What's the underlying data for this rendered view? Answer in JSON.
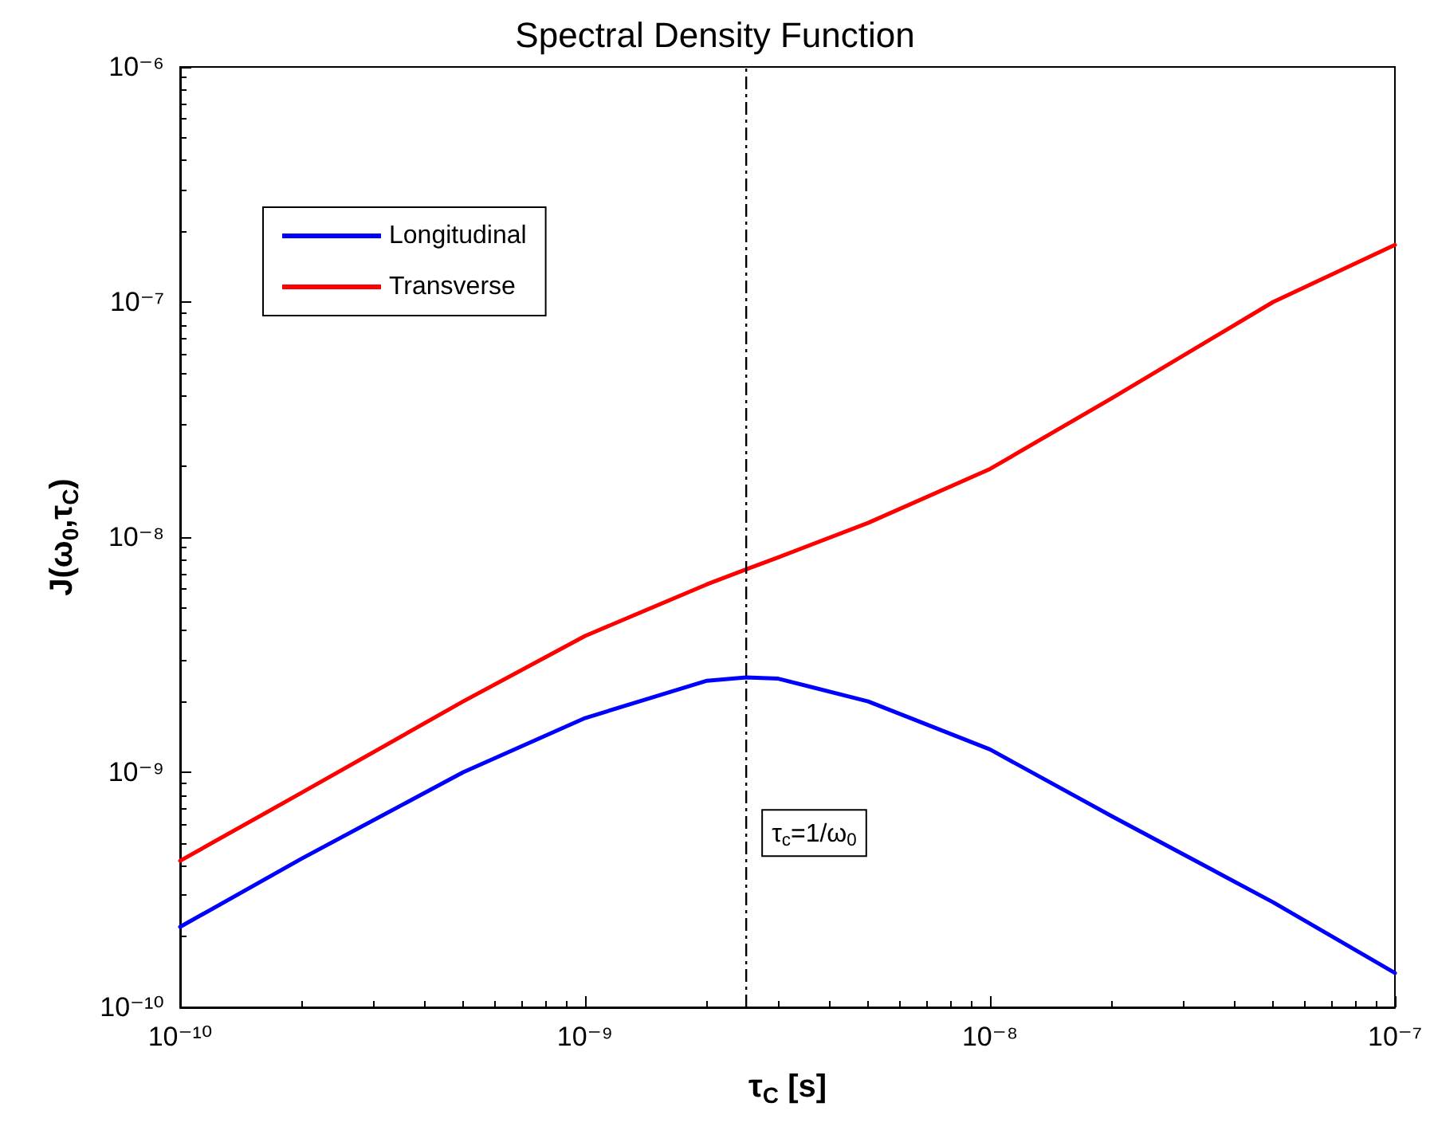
{
  "chart_data": {
    "type": "line",
    "title": "Spectral Density Function",
    "xlabel": "τ$_{C}$ [s]",
    "ylabel": "J(ω$_{0}$,τ$_{C}$)",
    "log": "xy",
    "grid": false,
    "legend": "top left",
    "marker": "none",
    "line_style": "solid",
    "x": [
      1e-10,
      2e-10,
      5e-10,
      1e-09,
      2e-09,
      2.5e-09,
      3e-09,
      5e-09,
      1e-08,
      2e-08,
      5e-08,
      1e-07
    ],
    "xlim": [
      1e-10,
      1e-07
    ],
    "xticks": [
      {
        "value": 1e-10,
        "label": "10⁻¹⁰"
      },
      {
        "value": 1e-09,
        "label": "10⁻⁹"
      },
      {
        "value": 1e-08,
        "label": "10⁻⁸"
      },
      {
        "value": 1e-07,
        "label": "10⁻⁷"
      }
    ],
    "ylim": [
      1e-10,
      1e-06
    ],
    "yticks": [
      {
        "value": 1e-10,
        "label": "10⁻¹⁰"
      },
      {
        "value": 1e-09,
        "label": "10⁻⁹"
      },
      {
        "value": 1e-08,
        "label": "10⁻⁸"
      },
      {
        "value": 1e-07,
        "label": "10⁻⁷"
      },
      {
        "value": 1e-06,
        "label": "10⁻⁶"
      }
    ],
    "series": [
      {
        "name": "Longitudinal",
        "color": "#0000ff",
        "values": [
          2.2e-10,
          4.3e-10,
          1e-09,
          1.7e-09,
          2.45e-09,
          2.53e-09,
          2.5e-09,
          2e-09,
          1.25e-09,
          6.5e-10,
          2.8e-10,
          1.4e-10
        ]
      },
      {
        "name": "Transverse",
        "color": "#ff0000",
        "values": [
          4.2e-10,
          8.2e-10,
          2e-09,
          3.8e-09,
          6.3e-09,
          7.3e-09,
          8.2e-09,
          1.15e-08,
          1.95e-08,
          3.9e-08,
          1e-07,
          1.75e-07
        ]
      }
    ],
    "ref_lines": [
      {
        "axis": "x",
        "value": 2.5e-09,
        "label": "τ$_{c}$=1/ω$_{0}$",
        "color": "#000000",
        "line_style": "dashed"
      }
    ]
  }
}
